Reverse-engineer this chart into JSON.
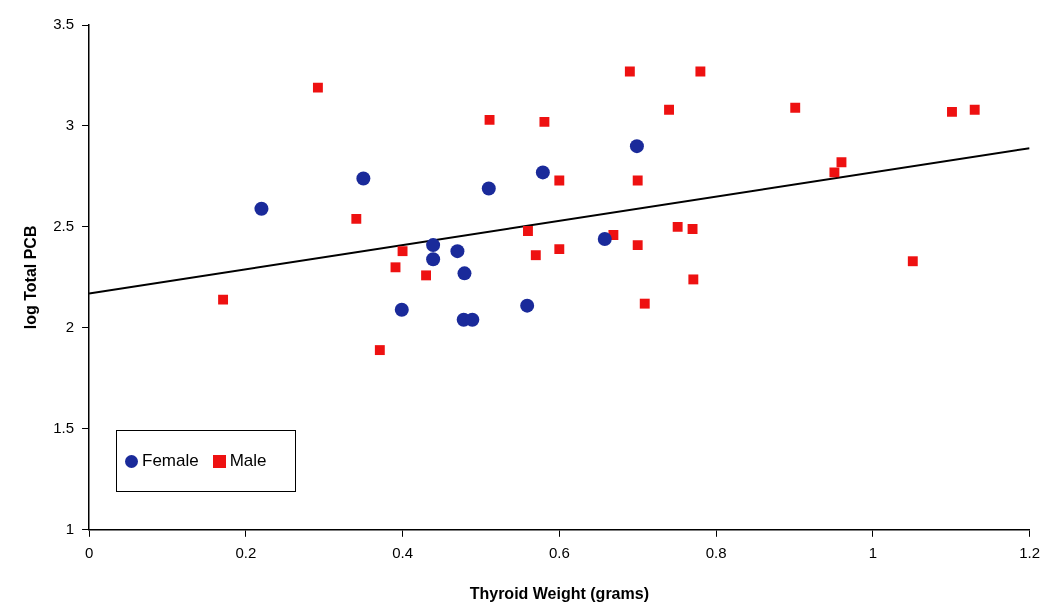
{
  "chart_data": {
    "type": "scatter",
    "xlabel": "Thyroid Weight (grams)",
    "ylabel": "log Total PCB",
    "xlim": [
      0,
      1.2
    ],
    "xticks": [
      0,
      0.2,
      0.4,
      0.6,
      0.8,
      1,
      1.2
    ],
    "ylim": [
      1,
      3.5
    ],
    "yticks": [
      1,
      1.5,
      2,
      2.5,
      3,
      3.5
    ],
    "grid": false,
    "legend": "bottom left",
    "series": [
      {
        "name": "Female",
        "color": "#1a2a9a",
        "marker": "circle",
        "x": [
          0.22,
          0.35,
          0.51,
          0.579,
          0.439,
          0.439,
          0.47,
          0.479,
          0.399,
          0.478,
          0.489,
          0.559,
          0.658,
          0.699
        ],
        "values": [
          2.59,
          2.74,
          2.69,
          2.77,
          2.41,
          2.34,
          2.38,
          2.27,
          2.09,
          2.04,
          2.04,
          2.11,
          2.44,
          2.9
        ]
      },
      {
        "name": "Male",
        "color": "#ee1111",
        "marker": "square",
        "x": [
          0.171,
          0.292,
          0.341,
          0.371,
          0.391,
          0.4,
          0.43,
          0.511,
          0.56,
          0.57,
          0.581,
          0.6,
          0.6,
          0.669,
          0.69,
          0.7,
          0.7,
          0.709,
          0.74,
          0.751,
          0.77,
          0.771,
          0.78,
          0.901,
          0.951,
          0.96,
          1.051,
          1.101,
          1.13
        ],
        "values": [
          2.14,
          3.19,
          2.54,
          1.89,
          2.3,
          2.38,
          2.26,
          3.03,
          2.48,
          2.36,
          3.02,
          2.73,
          2.39,
          2.46,
          3.27,
          2.73,
          2.41,
          2.12,
          3.08,
          2.5,
          2.49,
          2.24,
          3.27,
          3.09,
          2.77,
          2.82,
          2.33,
          3.07,
          3.08
        ]
      },
      {
        "type": "line",
        "color": "#000000",
        "marker": "none",
        "x": [
          0,
          1.2
        ],
        "values": [
          2.17,
          2.89
        ]
      }
    ]
  }
}
